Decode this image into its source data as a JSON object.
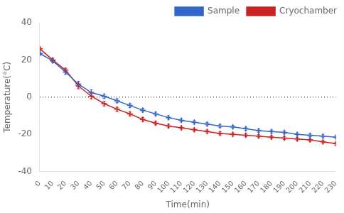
{
  "chart_data": {
    "type": "line",
    "x_label": "Time(min)",
    "y_label": "Temperature(°C)",
    "x": [
      0,
      10,
      20,
      30,
      40,
      50,
      60,
      70,
      80,
      90,
      100,
      110,
      120,
      130,
      140,
      150,
      160,
      170,
      180,
      190,
      200,
      210,
      220,
      230
    ],
    "series": [
      {
        "name": "Sample",
        "color": "#3366CC",
        "marker": "plus",
        "values": [
          23.5,
          19.5,
          13.5,
          7.0,
          2.5,
          0.5,
          -2.0,
          -4.5,
          -7.0,
          -9.0,
          -11.0,
          -12.5,
          -13.5,
          -14.5,
          -15.5,
          -16.0,
          -17.0,
          -18.0,
          -18.5,
          -19.0,
          -20.0,
          -20.5,
          -21.0,
          -21.5
        ],
        "errors": [
          0.8,
          1.0,
          1.2,
          1.5,
          1.5,
          1.2,
          1.0,
          1.0,
          1.0,
          0.9,
          0.9,
          0.8,
          0.8,
          0.8,
          0.8,
          0.8,
          0.8,
          0.8,
          0.8,
          0.8,
          0.8,
          0.8,
          0.8,
          0.8
        ]
      },
      {
        "name": "Cryochamber",
        "color": "#CC2222",
        "marker": "plus",
        "values": [
          26.0,
          20.0,
          14.5,
          6.0,
          0.5,
          -3.5,
          -6.5,
          -9.0,
          -12.0,
          -14.0,
          -15.5,
          -16.5,
          -17.5,
          -18.5,
          -19.5,
          -20.0,
          -20.5,
          -21.0,
          -21.5,
          -22.0,
          -22.5,
          -23.0,
          -24.0,
          -25.0
        ],
        "errors": [
          0.8,
          0.9,
          1.0,
          1.5,
          1.5,
          1.2,
          1.0,
          1.0,
          1.0,
          0.9,
          0.9,
          0.8,
          0.8,
          0.8,
          0.8,
          0.8,
          0.8,
          0.8,
          0.8,
          0.8,
          0.8,
          0.8,
          0.8,
          0.8
        ]
      }
    ],
    "xlim": [
      0,
      230
    ],
    "xticks": [
      0,
      10,
      20,
      30,
      40,
      50,
      60,
      70,
      80,
      90,
      100,
      110,
      120,
      130,
      140,
      150,
      160,
      170,
      180,
      190,
      200,
      210,
      220,
      230
    ],
    "ylim": [
      -40,
      40
    ],
    "yticks": [
      -40,
      -20,
      0,
      20,
      40
    ],
    "reference_line": {
      "y": 0,
      "color": "#000000",
      "line_style": "dotted"
    },
    "grid": false,
    "legend": "upper right"
  }
}
